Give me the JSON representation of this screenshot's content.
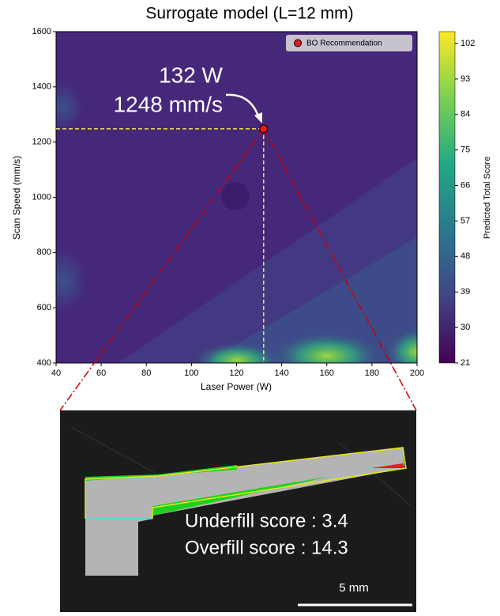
{
  "chart_data": {
    "type": "contour",
    "title": "Surrogate model (L=12 mm)",
    "x_label": "Laser Power (W)",
    "y_label": "Scan Speed (mm/s)",
    "xlim": [
      40,
      200
    ],
    "xticks": [
      40,
      60,
      80,
      100,
      120,
      140,
      160,
      180,
      200
    ],
    "ylim": [
      400,
      1600
    ],
    "yticks": [
      400,
      600,
      800,
      1000,
      1200,
      1400,
      1600
    ],
    "series": [
      {
        "name": "BO Recommendation",
        "color": "#e41a1c",
        "x": [
          132
        ],
        "values": [
          1248
        ]
      }
    ],
    "annotations": [
      "132 W",
      "1248 mm/s"
    ],
    "legend": "upper right",
    "colorbar": {
      "label": "Predicted Total Score",
      "lim": [
        21,
        105
      ],
      "ticks": [
        21,
        30,
        39,
        48,
        57,
        66,
        75,
        84,
        93,
        102
      ]
    }
  },
  "photo": {
    "underfill": "Underfill score : 3.4",
    "overfill": "Overfill score : 14.3",
    "scale_bar": "5 mm"
  }
}
